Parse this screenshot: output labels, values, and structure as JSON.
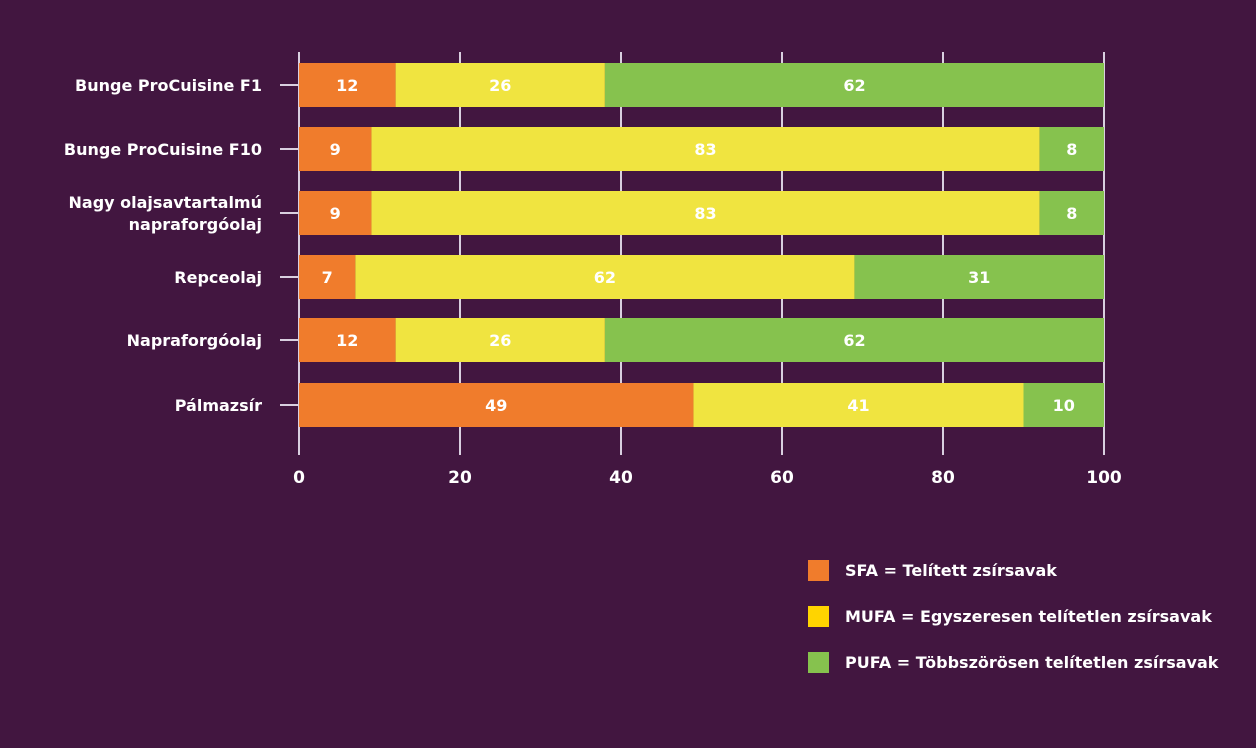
{
  "chart_data": {
    "type": "bar",
    "orientation": "horizontal",
    "stacked": true,
    "title": "",
    "xlabel": "",
    "ylabel": "",
    "xlim": [
      0,
      100
    ],
    "xticks": [
      0,
      20,
      40,
      60,
      80,
      100
    ],
    "grid": true,
    "categories": [
      [
        "Bunge ProCuisine F1"
      ],
      [
        "Bunge ProCuisine F10"
      ],
      [
        "Nagy olajsavtartalmú",
        "napraforgóolaj"
      ],
      [
        "Repceolaj"
      ],
      [
        "Napraforgóolaj"
      ],
      [
        "Pálmazsír"
      ]
    ],
    "series": [
      {
        "name": "SFA = Telített zsírsavak",
        "color": "#f07c2c",
        "values": [
          12,
          9,
          9,
          7,
          12,
          49
        ]
      },
      {
        "name": "MUFA = Egyszeresen telítetlen zsírsavak",
        "color": "#f0e440",
        "values": [
          26,
          83,
          83,
          62,
          26,
          41
        ]
      },
      {
        "name": "PUFA = Többszörösen telítetlen zsírsavak",
        "color": "#86c24e",
        "values": [
          62,
          8,
          8,
          31,
          62,
          10
        ]
      }
    ],
    "legend": {
      "placement": "bottom-right",
      "swatch_colors": [
        "#f07c2c",
        "#ffd400",
        "#86c24e"
      ]
    }
  },
  "colors": {
    "background": "#421640",
    "axis": "#d9cfe0",
    "text": "#ffffff"
  }
}
